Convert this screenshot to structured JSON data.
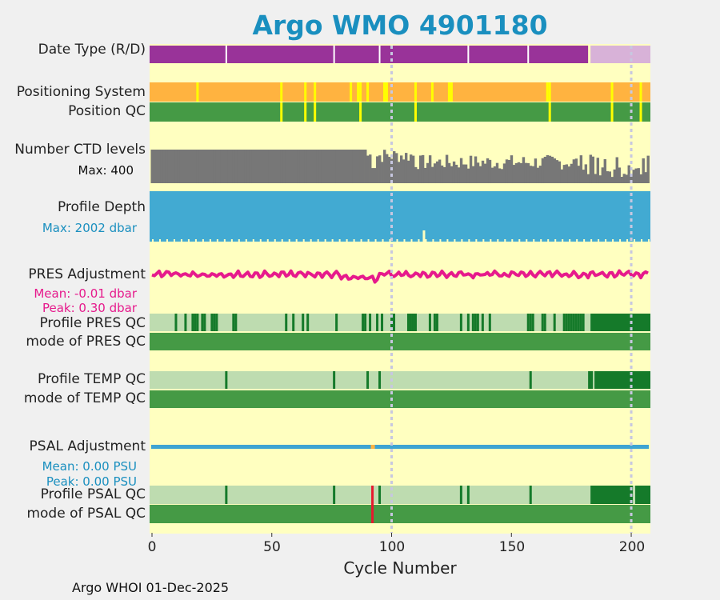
{
  "title": "Argo WMO 4901180",
  "colors": {
    "background": "#f0f0f0",
    "panel": "#ffffc0",
    "title": "#1a8fbf",
    "date_R": "#993399",
    "date_D": "#d8b2d8",
    "positioning": "#ffb340",
    "positioning_flag": "#ffff00",
    "qc_good": "#459a45",
    "qc_light": "#bedcb0",
    "qc_dark": "#157a2a",
    "qc_bad": "#e6192e",
    "ctd": "#777777",
    "depth": "#42aad2",
    "pres_adj": "#e61a8c",
    "psal_adj": "#3ea4d2",
    "grid": "#c7c7e0"
  },
  "rows": {
    "date_type": {
      "label": "Date Type (R/D)"
    },
    "positioning": {
      "label": "Positioning System"
    },
    "position_qc": {
      "label": "Position QC"
    },
    "ctd_levels": {
      "label": "Number CTD levels",
      "sub": "Max: 400"
    },
    "profile_depth": {
      "label": "Profile Depth",
      "sub": "Max: 2002 dbar"
    },
    "pres_adjustment": {
      "label": "PRES Adjustment",
      "mean": "Mean: -0.01 dbar",
      "peak": "Peak: 0.30 dbar"
    },
    "profile_pres_qc": {
      "label": "Profile PRES QC"
    },
    "mode_pres_qc": {
      "label": "mode of PRES QC"
    },
    "profile_temp_qc": {
      "label": "Profile TEMP QC"
    },
    "mode_temp_qc": {
      "label": "mode of TEMP QC"
    },
    "psal_adjustment": {
      "label": "PSAL Adjustment",
      "mean": "Mean: 0.00 PSU",
      "peak": "Peak: 0.00 PSU"
    },
    "profile_psal_qc": {
      "label": "Profile PSAL QC"
    },
    "mode_psal_qc": {
      "label": "mode of PSAL QC"
    }
  },
  "xaxis": {
    "label": "Cycle Number",
    "ticks": [
      "0",
      "50",
      "100",
      "150",
      "200"
    ]
  },
  "footer": "Argo WHOI 01-Dec-2025",
  "chart_data": {
    "type": "table",
    "title": "Argo WMO 4901180",
    "xlabel": "Cycle Number",
    "xlim": [
      -1,
      208
    ],
    "xticks": [
      0,
      50,
      100,
      150,
      200
    ],
    "grid_x": [
      100,
      200
    ],
    "n_cycles": 208,
    "date_type": {
      "realtime_until_cycle": 182,
      "delayed_from_cycle": 183,
      "gap_cycles": [
        31,
        76,
        95,
        132,
        157
      ]
    },
    "positioning_flags": [
      19,
      54,
      64,
      68,
      83,
      86,
      87,
      90,
      97,
      98,
      110,
      117,
      124,
      125,
      165,
      166,
      192,
      204
    ],
    "position_qc_bad": [
      54,
      64,
      68,
      87,
      110,
      166,
      192,
      204
    ],
    "ctd_levels": {
      "max": 400,
      "typical_early": 400,
      "typical_late": 250
    },
    "profile_depth": {
      "max_dbar": 2002
    },
    "pres_adjustment": {
      "mean_dbar": -0.01,
      "peak_dbar": 0.3
    },
    "pres_profile_qc_dark": [
      10,
      14,
      17,
      18,
      19,
      21,
      22,
      25,
      26,
      27,
      34,
      35,
      56,
      59,
      63,
      65,
      77,
      88,
      89,
      91,
      94,
      96,
      100,
      101,
      107,
      108,
      109,
      110,
      116,
      118,
      119,
      129,
      132,
      134,
      135,
      136,
      138,
      141,
      157,
      158,
      159,
      163,
      164,
      168,
      172,
      173,
      174,
      175,
      176,
      177,
      178,
      179,
      180
    ],
    "pres_profile_qc_dark_from": 183,
    "temp_profile_qc_dark": [
      31,
      76,
      90,
      95,
      158
    ],
    "temp_profile_qc_dark_from": 182,
    "psal_adjustment": {
      "mean_psu": 0.0,
      "peak_psu": 0.0,
      "gap_cycle": 92
    },
    "psal_profile_qc_dark": [
      31,
      76,
      95,
      129,
      132,
      158,
      201
    ],
    "psal_profile_qc_dark_from": 183,
    "psal_qc_bad_cycle": 92
  }
}
